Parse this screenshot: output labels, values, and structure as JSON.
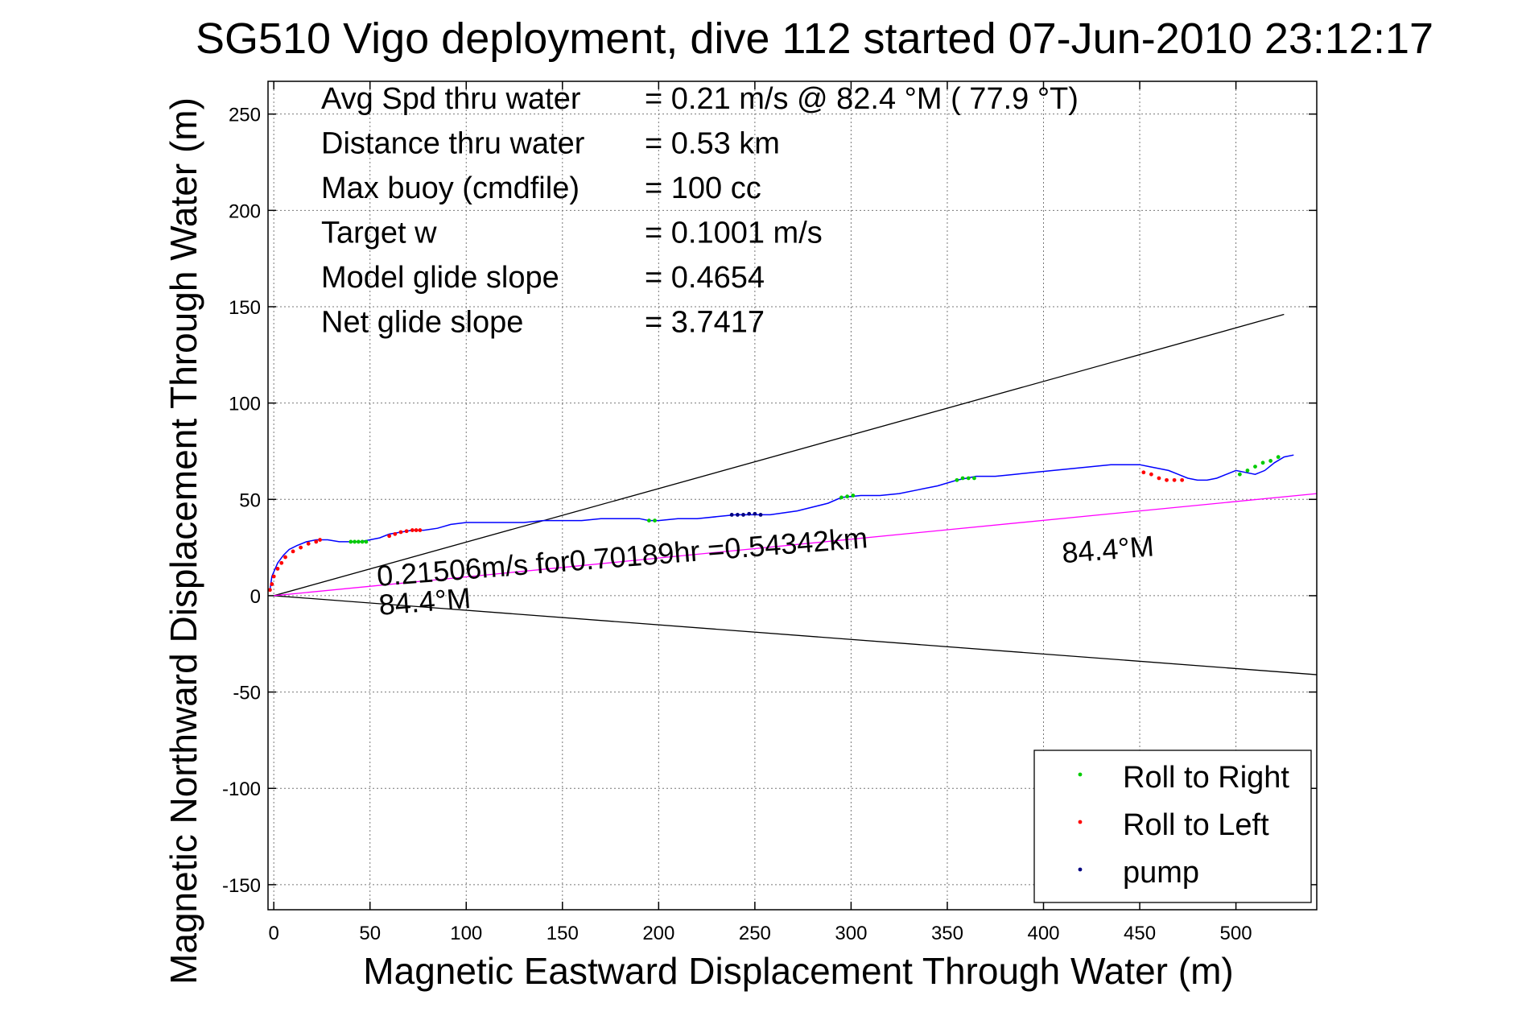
{
  "chart_data": {
    "type": "line",
    "title": "SG510 Vigo deployment, dive 112 started 07-Jun-2010 23:12:17",
    "xlabel": "Magnetic Eastward Displacement Through Water (m)",
    "ylabel": "Magnetic Northward Displacement Through Water (m)",
    "xlim": [
      -3,
      542
    ],
    "ylim": [
      -163,
      267
    ],
    "xticks": [
      0,
      50,
      100,
      150,
      200,
      250,
      300,
      350,
      400,
      450,
      500
    ],
    "yticks": [
      -150,
      -100,
      -50,
      0,
      50,
      100,
      150,
      200,
      250
    ],
    "grid": true,
    "info_rows": [
      {
        "label": "Avg Spd thru water",
        "value": "=  0.21 m/s @  82.4 °M ( 77.9 °T)"
      },
      {
        "label": "Distance thru water",
        "value": "=  0.53 km"
      },
      {
        "label": "Max buoy (cmdfile)",
        "value": "= 100 cc"
      },
      {
        "label": "Target w",
        "value": "= 0.1001 m/s"
      },
      {
        "label": "Model glide slope",
        "value": "= 0.4654"
      },
      {
        "label": "Net glide slope",
        "value": "= 3.7417"
      }
    ],
    "annotations": [
      {
        "text": "0.21506m/s for0.70189hr =0.54342km",
        "x": 54,
        "y": 5,
        "rotation_deg": -4.5
      },
      {
        "text": "84.4°M",
        "x": 55,
        "y": -10,
        "rotation_deg": -4.5
      },
      {
        "text": "84.4°M",
        "x": 410,
        "y": 17,
        "rotation_deg": -4.5
      }
    ],
    "legend_position": "bottom-right",
    "series": [
      {
        "name": "track",
        "color": "#0000ff",
        "x": [
          -2,
          -1,
          2,
          5,
          8,
          12,
          17,
          22,
          28,
          34,
          40,
          45,
          50,
          55,
          60,
          66,
          72,
          78,
          85,
          92,
          100,
          110,
          120,
          130,
          140,
          150,
          160,
          170,
          180,
          190,
          195,
          200,
          210,
          220,
          230,
          240,
          250,
          258,
          265,
          272,
          280,
          288,
          295,
          305,
          315,
          325,
          335,
          345,
          355,
          365,
          375,
          385,
          395,
          405,
          415,
          425,
          435,
          445,
          450,
          455,
          460,
          465,
          470,
          475,
          480,
          485,
          490,
          495,
          500,
          505,
          510,
          515,
          520,
          525,
          530
        ],
        "y": [
          3,
          10,
          17,
          21,
          24,
          26,
          28,
          29,
          29,
          28,
          28,
          28,
          29,
          30,
          32,
          33,
          34,
          34,
          35,
          37,
          38,
          38,
          38,
          38,
          39,
          39,
          39,
          40,
          40,
          40,
          39,
          39,
          40,
          40,
          41,
          42,
          42,
          42,
          43,
          44,
          46,
          48,
          51,
          52,
          52,
          53,
          55,
          57,
          60,
          62,
          62,
          63,
          64,
          65,
          66,
          67,
          68,
          68,
          68,
          67,
          66,
          65,
          63,
          61,
          60,
          60,
          61,
          63,
          65,
          64,
          63,
          65,
          69,
          72,
          73
        ]
      },
      {
        "name": "Roll to Right",
        "color": "#00cc00",
        "x": [
          40,
          42,
          44,
          46,
          48,
          195,
          198,
          295,
          298,
          301,
          355,
          358,
          361,
          364,
          502,
          506,
          510,
          514,
          518,
          522
        ],
        "y": [
          28,
          28,
          28,
          28,
          28,
          39,
          39,
          51,
          51.5,
          52,
          60,
          61,
          61,
          61,
          63,
          65,
          67,
          69,
          70,
          72
        ]
      },
      {
        "name": "Roll to Left",
        "color": "#ff0000",
        "x": [
          -2,
          -1,
          0,
          2,
          4,
          6,
          10,
          14,
          18,
          22,
          24,
          60,
          63,
          66,
          69,
          72,
          74,
          76,
          452,
          456,
          460,
          464,
          468,
          472
        ],
        "y": [
          3,
          6,
          10,
          14,
          17,
          20,
          23,
          25,
          27,
          28,
          29,
          31,
          32,
          33,
          33.5,
          34,
          34,
          34,
          64,
          63,
          61,
          60,
          60,
          60
        ]
      },
      {
        "name": "pump",
        "color": "#000080",
        "x": [
          238,
          241,
          244,
          247,
          250,
          253
        ],
        "y": [
          42,
          42,
          42,
          42.5,
          42.5,
          42
        ]
      }
    ],
    "reference_lines": [
      {
        "color": "#000000",
        "x": [
          0,
          525
        ],
        "y": [
          0,
          146
        ]
      },
      {
        "color": "#000000",
        "x": [
          0,
          542
        ],
        "y": [
          0,
          -41
        ]
      },
      {
        "color": "#ff00ff",
        "x": [
          0,
          542
        ],
        "y": [
          0,
          53
        ]
      }
    ]
  }
}
